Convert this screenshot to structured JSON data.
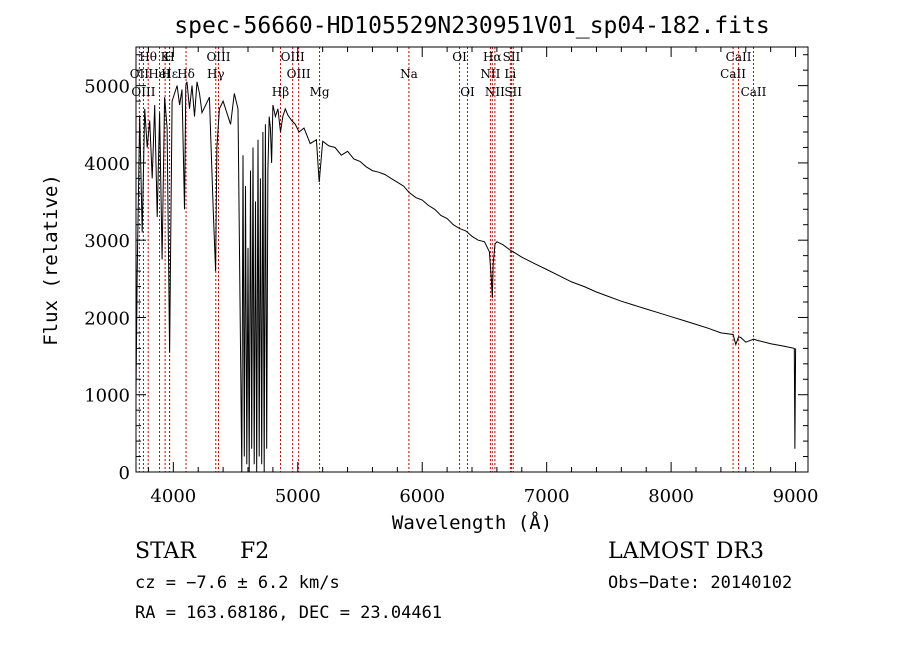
{
  "chart_data": {
    "type": "line",
    "title": "spec-56660-HD105529N230951V01_sp04-182.fits",
    "xlabel": "Wavelength (Å)",
    "ylabel": "Flux (relative)",
    "xlim": [
      3700,
      9100
    ],
    "ylim": [
      0,
      5500
    ],
    "xticks": [
      4000,
      5000,
      6000,
      7000,
      8000,
      9000
    ],
    "yticks": [
      0,
      1000,
      2000,
      3000,
      4000,
      5000
    ],
    "grid": false,
    "series": [
      {
        "name": "spectrum",
        "x": [
          3700,
          3710,
          3730,
          3750,
          3770,
          3790,
          3810,
          3830,
          3850,
          3870,
          3890,
          3910,
          3930,
          3950,
          3970,
          3990,
          4010,
          4030,
          4050,
          4070,
          4090,
          4100,
          4110,
          4130,
          4150,
          4170,
          4190,
          4210,
          4230,
          4260,
          4290,
          4320,
          4340,
          4350,
          4370,
          4400,
          4430,
          4460,
          4490,
          4520,
          4550,
          4560,
          4570,
          4580,
          4590,
          4600,
          4610,
          4620,
          4630,
          4640,
          4650,
          4660,
          4670,
          4680,
          4690,
          4700,
          4710,
          4720,
          4730,
          4740,
          4750,
          4760,
          4770,
          4780,
          4790,
          4800,
          4820,
          4840,
          4861,
          4880,
          4900,
          4920,
          4950,
          4980,
          5010,
          5050,
          5100,
          5150,
          5172,
          5200,
          5250,
          5300,
          5350,
          5400,
          5450,
          5500,
          5550,
          5600,
          5650,
          5700,
          5750,
          5800,
          5850,
          5893,
          5950,
          6000,
          6050,
          6100,
          6150,
          6200,
          6250,
          6300,
          6350,
          6400,
          6450,
          6500,
          6540,
          6555,
          6563,
          6570,
          6585,
          6600,
          6650,
          6700,
          6750,
          6800,
          6900,
          7000,
          7100,
          7200,
          7300,
          7400,
          7500,
          7600,
          7700,
          7800,
          7900,
          8000,
          8100,
          8200,
          8300,
          8400,
          8498,
          8520,
          8542,
          8560,
          8600,
          8662,
          8700,
          8800,
          8900,
          8990,
          8995,
          9000
        ],
        "values": [
          1000,
          2600,
          4600,
          3100,
          4700,
          4200,
          4550,
          3800,
          4750,
          3300,
          4650,
          2750,
          4850,
          4450,
          1550,
          4800,
          4900,
          5000,
          4750,
          4950,
          3400,
          5000,
          5050,
          4700,
          5000,
          4600,
          5050,
          4900,
          4650,
          4750,
          4850,
          3400,
          2600,
          4200,
          4700,
          4800,
          4650,
          4500,
          4900,
          4700,
          0,
          4100,
          200,
          3700,
          100,
          2900,
          0,
          3900,
          300,
          4200,
          100,
          3500,
          0,
          4300,
          200,
          3800,
          100,
          4400,
          0,
          4500,
          300,
          3900,
          4600,
          4450,
          4000,
          4750,
          4600,
          4700,
          4400,
          4600,
          4700,
          4620,
          4550,
          4500,
          4400,
          4450,
          4250,
          4300,
          3750,
          4280,
          4220,
          4200,
          4100,
          4150,
          4050,
          4020,
          3950,
          3900,
          3880,
          3850,
          3800,
          3750,
          3700,
          3620,
          3550,
          3520,
          3450,
          3400,
          3320,
          3280,
          3200,
          3150,
          3120,
          3050,
          3000,
          2980,
          2850,
          2500,
          2250,
          2700,
          2950,
          2980,
          2940,
          2880,
          2830,
          2780,
          2700,
          2620,
          2540,
          2460,
          2400,
          2330,
          2270,
          2210,
          2160,
          2110,
          2060,
          2010,
          1960,
          1910,
          1860,
          1800,
          1780,
          1650,
          1750,
          1740,
          1680,
          1720,
          1700,
          1660,
          1630,
          1600,
          300,
          1600
        ]
      }
    ],
    "line_features": [
      {
        "name": "Hθ",
        "wavelength": 3798,
        "row": 1
      },
      {
        "name": "OII",
        "wavelength": 3727,
        "row": 2
      },
      {
        "name": "OIII",
        "wavelength": 3760,
        "row": 3
      },
      {
        "name": "HeI",
        "wavelength": 3889,
        "row": 2
      },
      {
        "name": "K",
        "wavelength": 3934,
        "row": 1
      },
      {
        "name": "H",
        "wavelength": 3969,
        "row": 1
      },
      {
        "name": "Hε",
        "wavelength": 3970,
        "row": 2
      },
      {
        "name": "Hδ",
        "wavelength": 4102,
        "row": 2
      },
      {
        "name": "OIII",
        "wavelength": 4363,
        "row": 1
      },
      {
        "name": "Hγ",
        "wavelength": 4341,
        "row": 2
      },
      {
        "name": "Hβ",
        "wavelength": 4861,
        "row": 3
      },
      {
        "name": "OIII",
        "wavelength": 4959,
        "row": 1
      },
      {
        "name": "OIII",
        "wavelength": 5007,
        "row": 2
      },
      {
        "name": "Mg",
        "wavelength": 5175,
        "row": 3
      },
      {
        "name": "Na",
        "wavelength": 5893,
        "row": 2
      },
      {
        "name": "OI",
        "wavelength": 6300,
        "row": 1
      },
      {
        "name": "OI",
        "wavelength": 6364,
        "row": 3
      },
      {
        "name": "Hα",
        "wavelength": 6563,
        "row": 1
      },
      {
        "name": "NII",
        "wavelength": 6548,
        "row": 2
      },
      {
        "name": "NII",
        "wavelength": 6584,
        "row": 3
      },
      {
        "name": "SII",
        "wavelength": 6717,
        "row": 1
      },
      {
        "name": "Li",
        "wavelength": 6708,
        "row": 2
      },
      {
        "name": "SII",
        "wavelength": 6731,
        "row": 3
      },
      {
        "name": "CaII",
        "wavelength": 8498,
        "row": 2
      },
      {
        "name": "CaII",
        "wavelength": 8542,
        "row": 1
      },
      {
        "name": "CaII",
        "wavelength": 8662,
        "row": 3
      }
    ],
    "line_color": "#000000",
    "feature_color": "#cc0000"
  },
  "footer": {
    "object_type": "STAR",
    "subclass": "F2",
    "survey": "LAMOST DR3",
    "cz": "cz = −7.6 ± 6.2 km/s",
    "obs_date": "Obs−Date: 20140102",
    "coords": "RA = 163.68186, DEC =  23.04461"
  }
}
